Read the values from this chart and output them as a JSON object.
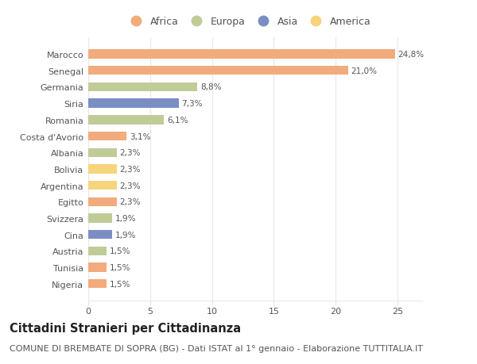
{
  "countries": [
    "Marocco",
    "Senegal",
    "Germania",
    "Siria",
    "Romania",
    "Costa d'Avorio",
    "Albania",
    "Bolivia",
    "Argentina",
    "Egitto",
    "Svizzera",
    "Cina",
    "Austria",
    "Tunisia",
    "Nigeria"
  ],
  "values": [
    24.8,
    21.0,
    8.8,
    7.3,
    6.1,
    3.1,
    2.3,
    2.3,
    2.3,
    2.3,
    1.9,
    1.9,
    1.5,
    1.5,
    1.5
  ],
  "labels": [
    "24,8%",
    "21,0%",
    "8,8%",
    "7,3%",
    "6,1%",
    "3,1%",
    "2,3%",
    "2,3%",
    "2,3%",
    "2,3%",
    "1,9%",
    "1,9%",
    "1,5%",
    "1,5%",
    "1,5%"
  ],
  "continents": [
    "Africa",
    "Africa",
    "Europa",
    "Asia",
    "Europa",
    "Africa",
    "Europa",
    "America",
    "America",
    "Africa",
    "Europa",
    "Asia",
    "Europa",
    "Africa",
    "Africa"
  ],
  "colors": {
    "Africa": "#F2AB7C",
    "Europa": "#C0CC98",
    "Asia": "#7B8EC4",
    "America": "#F5D47C"
  },
  "legend_order": [
    "Africa",
    "Europa",
    "Asia",
    "America"
  ],
  "title": "Cittadini Stranieri per Cittadinanza",
  "subtitle": "COMUNE DI BREMBATE DI SOPRA (BG) - Dati ISTAT al 1° gennaio - Elaborazione TUTTITALIA.IT",
  "xlim": [
    0,
    27
  ],
  "xticks": [
    0,
    5,
    10,
    15,
    20,
    25
  ],
  "background_color": "#ffffff",
  "plot_bg_color": "#f9f9f9",
  "grid_color": "#e8e8e8",
  "bar_height": 0.55,
  "title_fontsize": 10.5,
  "subtitle_fontsize": 8.0,
  "label_fontsize": 7.5,
  "tick_fontsize": 8.0,
  "legend_fontsize": 9.0,
  "text_color": "#555555",
  "title_color": "#222222"
}
